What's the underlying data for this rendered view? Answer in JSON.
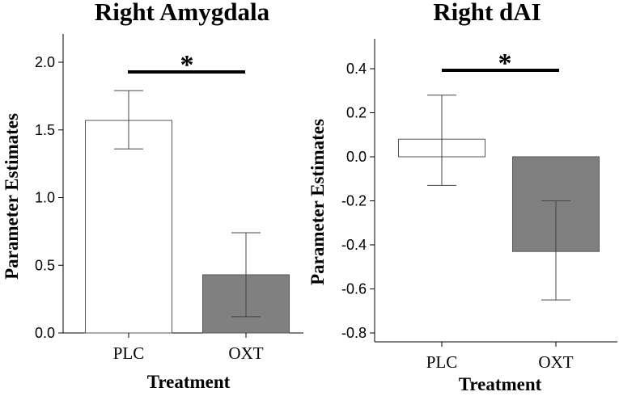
{
  "chart_data": [
    {
      "type": "bar",
      "title": "Right Amygdala",
      "xlabel": "Treatment",
      "ylabel": "Parameter Estimates",
      "categories": [
        "PLC",
        "OXT"
      ],
      "values": [
        1.57,
        0.43
      ],
      "error_low": [
        1.36,
        0.12
      ],
      "error_high": [
        1.79,
        0.74
      ],
      "bar_colors": [
        "#ffffff",
        "#808080"
      ],
      "ylim": [
        0.0,
        2.2
      ],
      "yticks": [
        "0.0",
        "0.5",
        "1.0",
        "1.5",
        "2.0"
      ],
      "significance": "*"
    },
    {
      "type": "bar",
      "title": "Right dAI",
      "xlabel": "Treatment",
      "ylabel": "Parameter Estimates",
      "categories": [
        "PLC",
        "OXT"
      ],
      "values": [
        0.08,
        -0.43
      ],
      "error_low": [
        -0.13,
        -0.65
      ],
      "error_high": [
        0.28,
        -0.2
      ],
      "bar_colors": [
        "#ffffff",
        "#808080"
      ],
      "ylim": [
        -0.8,
        0.5
      ],
      "yticks": [
        "-0.8",
        "-0.6",
        "-0.4",
        "-0.2",
        "0.0",
        "0.2",
        "0.4"
      ],
      "significance": "*"
    }
  ]
}
